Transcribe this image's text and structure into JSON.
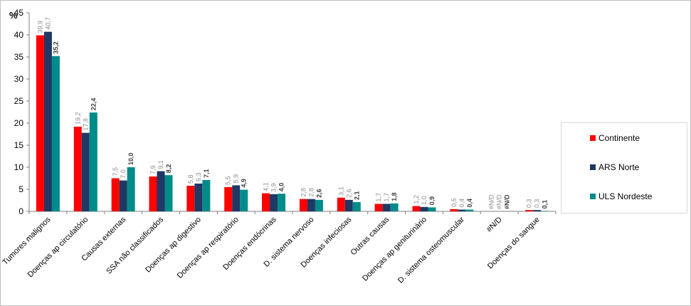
{
  "chart_data": {
    "type": "bar",
    "ylabel": "%",
    "ylim": [
      0,
      45
    ],
    "yticks": [
      0,
      5,
      10,
      15,
      20,
      25,
      30,
      35,
      40,
      45
    ],
    "grid": false,
    "legend_position": "right",
    "categories": [
      "Tumores malignos",
      "Doenças ap circulatório",
      "Causas externas",
      "SSA não classificados",
      "Doenças ap digestivo",
      "Doenças ap respiratório",
      "Doenças endócrinas",
      "D. sistema nervoso",
      "Doenças infeciosas",
      "Outras causas",
      "Doenças ap geniturinário",
      "D. sistema osteomuscular",
      "#N/D",
      "Doenças do sangue"
    ],
    "series": [
      {
        "name": "Continente",
        "color": "#ff0000",
        "values": [
          39.9,
          19.2,
          7.5,
          7.9,
          5.8,
          5.5,
          4.1,
          2.8,
          3.1,
          1.7,
          1.2,
          0.5,
          null,
          0.3
        ],
        "labels": [
          "39,9",
          "19,2",
          "7,5",
          "7,9",
          "5,8",
          "5,5",
          "4,1",
          "2,8",
          "3,1",
          "1,7",
          "1,2",
          "0,5",
          "#N/D",
          "0,3"
        ]
      },
      {
        "name": "ARS Norte",
        "color": "#1f3864",
        "values": [
          40.7,
          17.8,
          7.0,
          9.1,
          6.3,
          5.9,
          3.9,
          2.8,
          2.6,
          1.7,
          1.0,
          0.4,
          null,
          0.3
        ],
        "labels": [
          "40,7",
          "17,8",
          "7,0",
          "9,1",
          "6,3",
          "5,9",
          "3,9",
          "2,8",
          "2,6",
          "1,7",
          "1,0",
          "0,4",
          "#N/D",
          "0,3"
        ]
      },
      {
        "name": "ULS Nordeste",
        "color": "#008b8b",
        "values": [
          35.2,
          22.4,
          10.0,
          8.2,
          7.1,
          4.9,
          4.0,
          2.6,
          2.1,
          1.8,
          0.9,
          0.4,
          null,
          0.1
        ],
        "labels": [
          "35,2",
          "22,4",
          "10,0",
          "8,2",
          "7,1",
          "4,9",
          "4,0",
          "2,6",
          "2,1",
          "1,8",
          "0,9",
          "0,4",
          "#N/D",
          "0,1"
        ]
      }
    ]
  }
}
